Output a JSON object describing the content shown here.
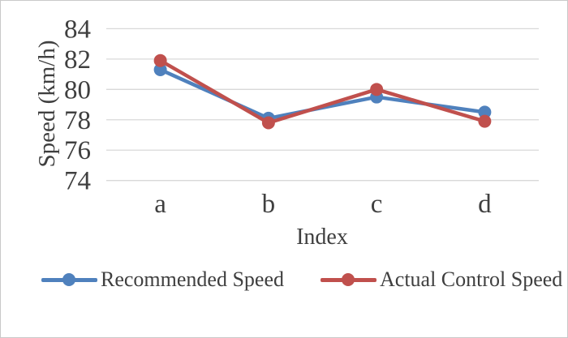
{
  "figure": {
    "background": "#ffffff",
    "border_color": "#c9c9c9"
  },
  "chart_data": {
    "type": "line",
    "title": "",
    "xlabel": "Index",
    "ylabel": "Speed (km/h)",
    "categories": [
      "a",
      "b",
      "c",
      "d"
    ],
    "series": [
      {
        "name": "Recommended Speed",
        "color": "#4F81BD",
        "values": [
          81.3,
          78.1,
          79.5,
          78.5
        ]
      },
      {
        "name": "Actual Control Speed",
        "color": "#C0504D",
        "values": [
          81.9,
          77.8,
          80.0,
          77.9
        ]
      }
    ],
    "ylim": [
      74,
      84
    ],
    "yticks": [
      74,
      76,
      78,
      80,
      82,
      84
    ],
    "grid": true,
    "gridline_color": "#d9d9d9",
    "text_color": "#3f3f3f",
    "legend_position": "bottom",
    "marker": "circle",
    "line_width": 4.5,
    "marker_diameter": 16
  }
}
